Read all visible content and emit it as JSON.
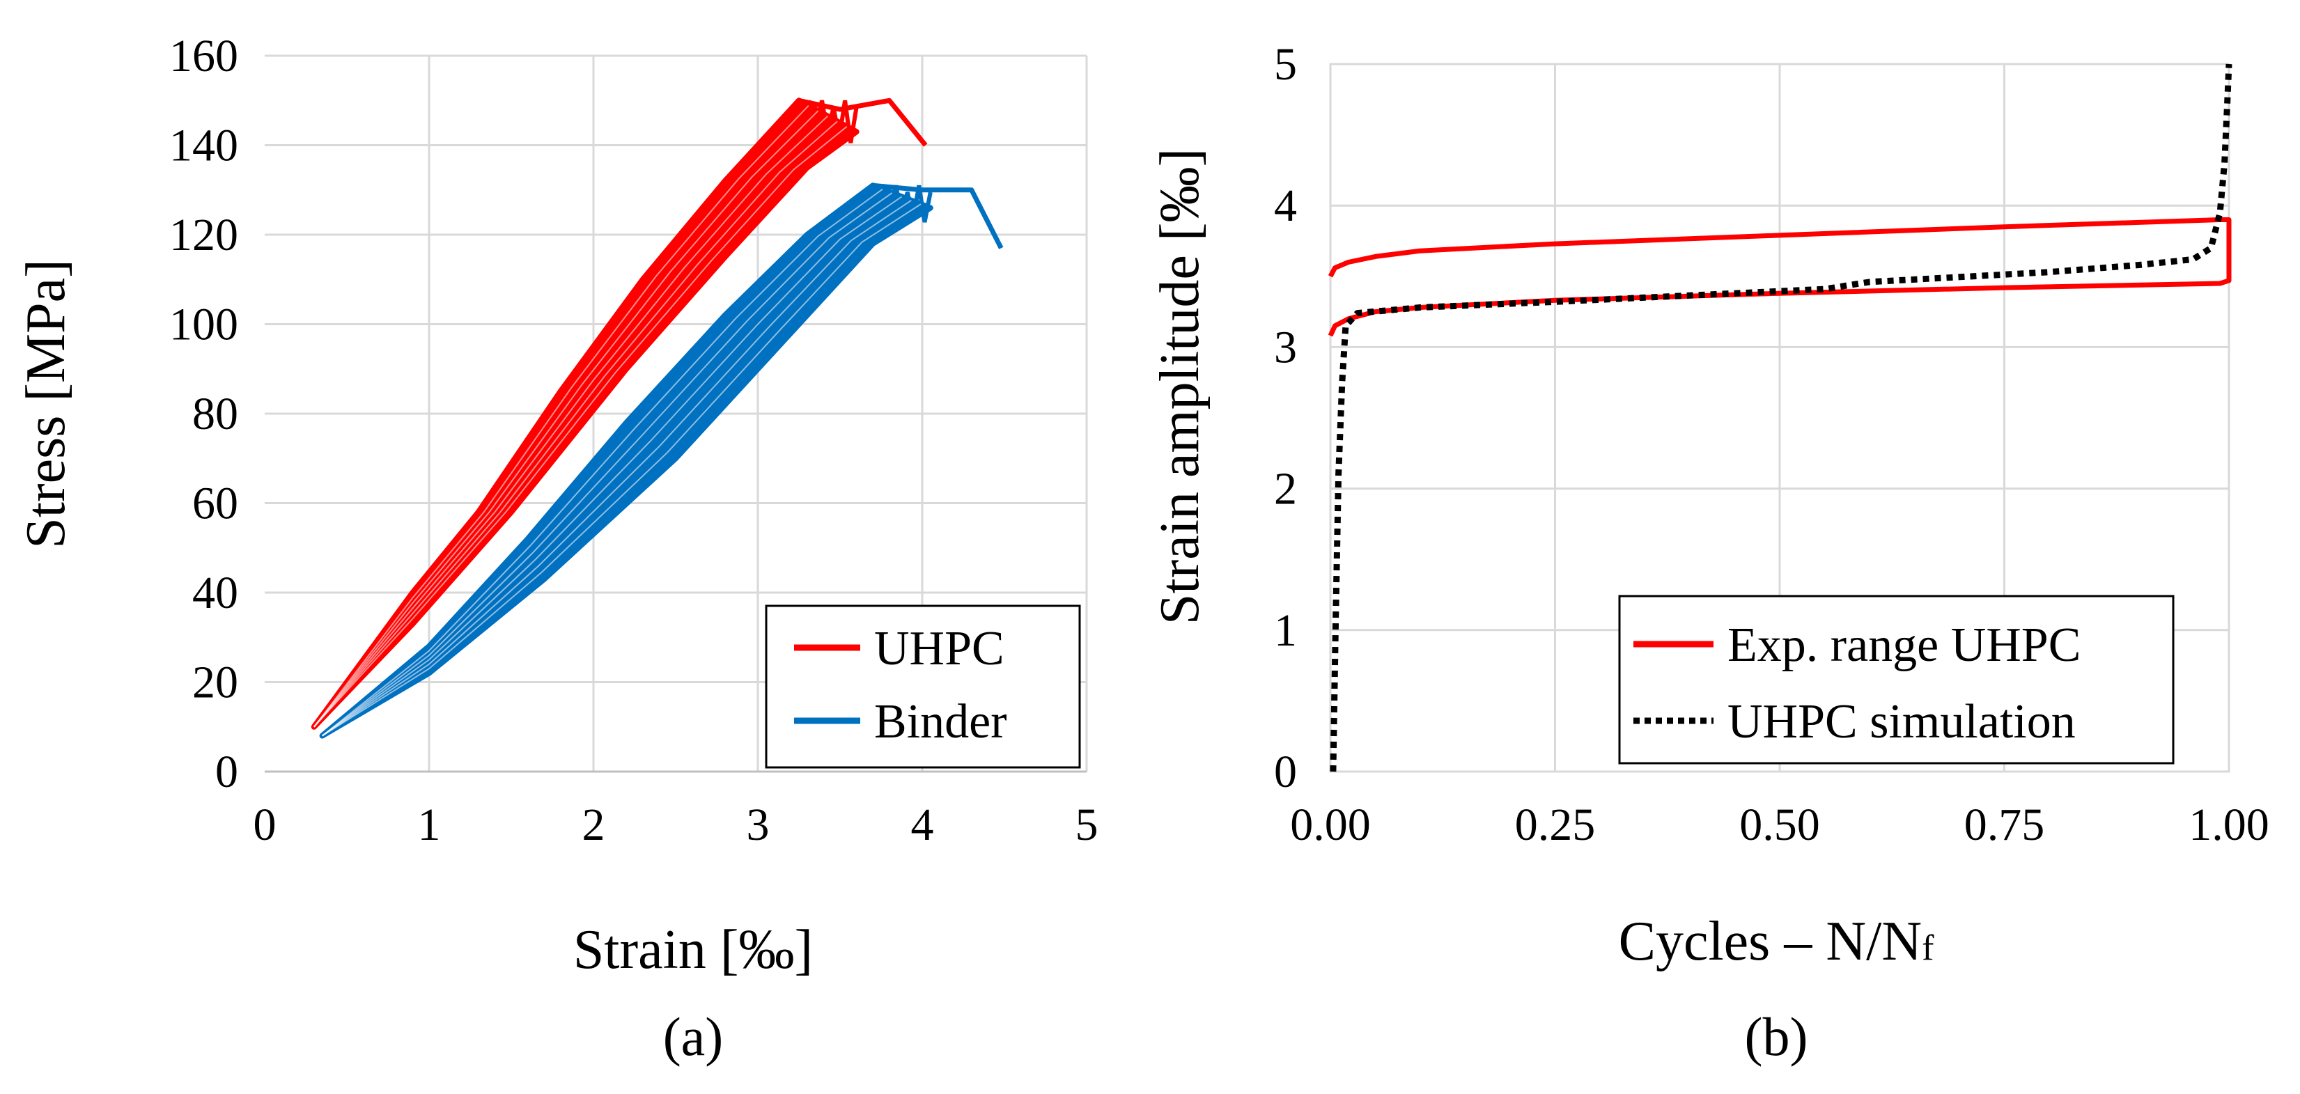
{
  "chart_data": [
    {
      "type": "line",
      "caption": "(a)",
      "xlabel": "Strain [‰]",
      "ylabel": "Stress [MPa]",
      "xlim": [
        0,
        5
      ],
      "ylim": [
        0,
        160
      ],
      "xticks": [
        "0",
        "1",
        "2",
        "3",
        "4",
        "5"
      ],
      "yticks": [
        "0",
        "20",
        "40",
        "60",
        "80",
        "100",
        "120",
        "140",
        "160"
      ],
      "grid": true,
      "legend_position": "bottom-right",
      "colors": {
        "UHPC": "#ff0000",
        "Binder": "#0070c0"
      },
      "series": [
        {
          "name": "UHPC",
          "note": "band of repeated loading curves",
          "lower": {
            "x": [
              0.3,
              0.9,
              1.5,
              2.2,
              2.8,
              3.3,
              3.6
            ],
            "y": [
              10,
              33,
              58,
              90,
              115,
              135,
              143
            ]
          },
          "upper": {
            "x": [
              0.3,
              0.9,
              1.3,
              1.8,
              2.3,
              2.8,
              3.25
            ],
            "y": [
              10,
              40,
              58,
              85,
              110,
              132,
              150
            ]
          },
          "peaks": {
            "x": [
              3.25,
              3.5,
              3.8,
              4.02
            ],
            "y": [
              150,
              148,
              150,
              140
            ]
          }
        },
        {
          "name": "Binder",
          "note": "band of repeated loading curves",
          "lower": {
            "x": [
              0.35,
              1.0,
              1.7,
              2.5,
              3.2,
              3.7,
              4.05
            ],
            "y": [
              8,
              22,
              43,
              70,
              98,
              118,
              126
            ]
          },
          "upper": {
            "x": [
              0.35,
              1.0,
              1.6,
              2.2,
              2.8,
              3.3,
              3.7
            ],
            "y": [
              8,
              28,
              52,
              78,
              102,
              120,
              131
            ]
          },
          "peaks": {
            "x": [
              3.7,
              4.0,
              4.3,
              4.48
            ],
            "y": [
              131,
              130,
              130,
              117
            ]
          }
        }
      ]
    },
    {
      "type": "line",
      "caption": "(b)",
      "xlabel": "Cycles – N/N",
      "xlabel_sub": "f",
      "ylabel": "Strain amplitude [‰]",
      "xlim": [
        0,
        1
      ],
      "ylim": [
        0,
        5
      ],
      "xticks": [
        "0.00",
        "0.25",
        "0.50",
        "0.75",
        "1.00"
      ],
      "yticks": [
        "0",
        "1",
        "2",
        "3",
        "4",
        "5"
      ],
      "grid": true,
      "legend_position": "bottom-right",
      "colors": {
        "Exp. range UHPC": "#ff0000",
        "UHPC simulation": "#000000"
      },
      "series": [
        {
          "name": "Exp. range UHPC",
          "style": "solid",
          "x": [
            0.0,
            0.005,
            0.02,
            0.05,
            0.1,
            0.25,
            0.5,
            0.75,
            0.99,
            1.0,
            1.0,
            0.99,
            0.75,
            0.5,
            0.25,
            0.1,
            0.05,
            0.02,
            0.005,
            0.0
          ],
          "y": [
            3.5,
            3.56,
            3.6,
            3.64,
            3.68,
            3.73,
            3.79,
            3.85,
            3.9,
            3.9,
            3.47,
            3.45,
            3.42,
            3.38,
            3.33,
            3.28,
            3.25,
            3.2,
            3.15,
            3.08
          ]
        },
        {
          "name": "UHPC simulation",
          "style": "dotted",
          "x": [
            0.003,
            0.006,
            0.009,
            0.013,
            0.017,
            0.03,
            0.1,
            0.25,
            0.45,
            0.55,
            0.6,
            0.8,
            0.9,
            0.96,
            0.98,
            0.99,
            0.995,
            0.998,
            1.0
          ],
          "y": [
            0.0,
            1.1,
            2.1,
            2.75,
            3.15,
            3.24,
            3.28,
            3.32,
            3.38,
            3.41,
            3.46,
            3.53,
            3.58,
            3.62,
            3.7,
            3.95,
            4.3,
            4.7,
            5.0
          ]
        }
      ]
    }
  ]
}
